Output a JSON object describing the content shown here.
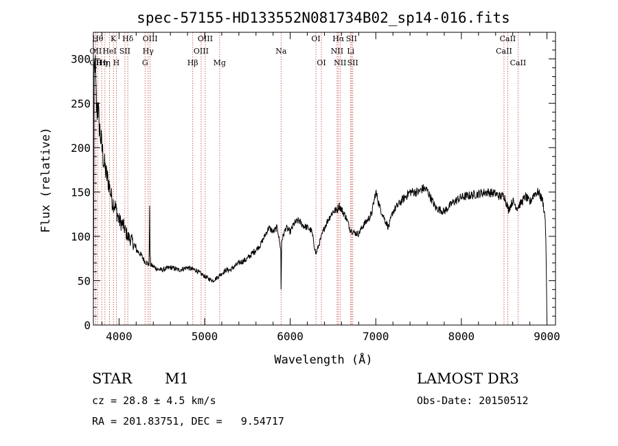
{
  "chart_data": {
    "type": "line",
    "title": "spec-57155-HD133552N081734B02_sp14-016.fits",
    "xlabel": "Wavelength (Å)",
    "ylabel": "Flux (relative)",
    "xlim": [
      3700,
      9100
    ],
    "ylim": [
      0,
      330
    ],
    "xticks": [
      4000,
      5000,
      6000,
      7000,
      8000,
      9000
    ],
    "yticks": [
      0,
      50,
      100,
      150,
      200,
      250,
      300
    ],
    "grid": false,
    "series": [
      {
        "name": "flux",
        "x": [
          3700,
          3710,
          3720,
          3730,
          3740,
          3750,
          3760,
          3780,
          3800,
          3820,
          3850,
          3880,
          3900,
          3920,
          3950,
          3980,
          4000,
          4050,
          4100,
          4150,
          4200,
          4250,
          4300,
          4350,
          4358,
          4362,
          4370,
          4400,
          4450,
          4500,
          4600,
          4700,
          4800,
          4850,
          4900,
          4950,
          5000,
          5050,
          5100,
          5150,
          5200,
          5250,
          5300,
          5400,
          5450,
          5500,
          5550,
          5600,
          5650,
          5700,
          5750,
          5800,
          5850,
          5890,
          5893,
          5896,
          5900,
          5950,
          6000,
          6050,
          6100,
          6150,
          6200,
          6250,
          6300,
          6350,
          6400,
          6450,
          6500,
          6550,
          6570,
          6600,
          6650,
          6700,
          6750,
          6800,
          6850,
          6900,
          6950,
          7000,
          7050,
          7100,
          7150,
          7200,
          7300,
          7400,
          7500,
          7550,
          7600,
          7700,
          7800,
          7900,
          8000,
          8100,
          8200,
          8300,
          8400,
          8450,
          8500,
          8550,
          8600,
          8650,
          8700,
          8750,
          8800,
          8850,
          8900,
          8950,
          8980,
          8990,
          9000
        ],
        "y": [
          20,
          275,
          300,
          260,
          240,
          250,
          235,
          215,
          200,
          185,
          170,
          160,
          150,
          140,
          135,
          125,
          118,
          112,
          100,
          95,
          85,
          80,
          72,
          68,
          130,
          80,
          68,
          66,
          63,
          62,
          65,
          62,
          65,
          63,
          62,
          58,
          55,
          52,
          50,
          54,
          58,
          62,
          62,
          70,
          72,
          75,
          80,
          85,
          90,
          100,
          110,
          105,
          110,
          85,
          40,
          60,
          95,
          110,
          105,
          115,
          118,
          112,
          110,
          106,
          80,
          95,
          110,
          120,
          128,
          130,
          135,
          130,
          122,
          108,
          104,
          103,
          112,
          118,
          125,
          150,
          132,
          120,
          110,
          128,
          140,
          150,
          150,
          154,
          152,
          132,
          128,
          138,
          144,
          146,
          148,
          150,
          148,
          145,
          146,
          130,
          140,
          132,
          138,
          145,
          138,
          148,
          150,
          140,
          120,
          80,
          5
        ]
      }
    ],
    "lines": [
      {
        "wave": 3727,
        "label": "OII",
        "row": 1
      },
      {
        "wave": 3727,
        "label": "OII",
        "row": 2
      },
      {
        "wave": 3750,
        "label": "Hθ",
        "row": 0
      },
      {
        "wave": 3797,
        "label": "Hη",
        "row": 2
      },
      {
        "wave": 3835,
        "label": "Hη",
        "row": 2
      },
      {
        "wave": 3889,
        "label": "HeI",
        "row": 1
      },
      {
        "wave": 3934,
        "label": "K",
        "row": 0
      },
      {
        "wave": 3968,
        "label": "H",
        "row": 2
      },
      {
        "wave": 4068,
        "label": "SII",
        "row": 1
      },
      {
        "wave": 4102,
        "label": "Hδ",
        "row": 0
      },
      {
        "wave": 4304,
        "label": "G",
        "row": 2
      },
      {
        "wave": 4340,
        "label": "Hγ",
        "row": 1
      },
      {
        "wave": 4363,
        "label": "OIII",
        "row": 0
      },
      {
        "wave": 4861,
        "label": "Hβ",
        "row": 2
      },
      {
        "wave": 4959,
        "label": "OIII",
        "row": 1
      },
      {
        "wave": 5007,
        "label": "OIII",
        "row": 0
      },
      {
        "wave": 5175,
        "label": "Mg",
        "row": 2
      },
      {
        "wave": 5893,
        "label": "Na",
        "row": 1
      },
      {
        "wave": 6300,
        "label": "OI",
        "row": 0
      },
      {
        "wave": 6364,
        "label": "OI",
        "row": 2
      },
      {
        "wave": 6548,
        "label": "NII",
        "row": 1
      },
      {
        "wave": 6563,
        "label": "Hα",
        "row": 0
      },
      {
        "wave": 6583,
        "label": "NII",
        "row": 2
      },
      {
        "wave": 6707,
        "label": "Li",
        "row": 1
      },
      {
        "wave": 6716,
        "label": "SII",
        "row": 0
      },
      {
        "wave": 6731,
        "label": "SII",
        "row": 2
      },
      {
        "wave": 8498,
        "label": "CaII",
        "row": 1
      },
      {
        "wave": 8542,
        "label": "CaII",
        "row": 0
      },
      {
        "wave": 8662,
        "label": "CaII",
        "row": 2
      }
    ],
    "line_color": "#c0392b"
  },
  "info": {
    "object_class": "STAR",
    "subclass": "M1",
    "survey": "LAMOST DR3",
    "cz": "cz = 28.8 ± 4.5 km/s",
    "obs_date": "Obs-Date: 20150512",
    "coords": "RA = 201.83751, DEC =   9.54717"
  }
}
